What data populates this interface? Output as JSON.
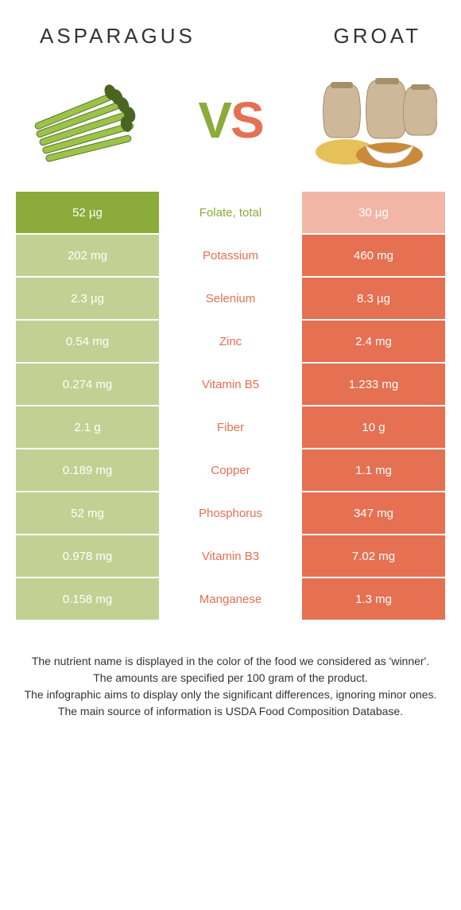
{
  "foods": {
    "left": {
      "name": "Asparagus",
      "color_full": "#8bab3b",
      "color_faded": "#c2d193"
    },
    "right": {
      "name": "Groat",
      "color_full": "#e57052",
      "color_faded": "#f1b6a5"
    }
  },
  "vs": {
    "text_v": "V",
    "text_s": "S"
  },
  "table": {
    "mid_colors": {
      "left_win": "#8bab3b",
      "right_win": "#e57052"
    },
    "rows": [
      {
        "nutrient": "Folate, total",
        "left": "52 µg",
        "right": "30 µg",
        "winner": "left"
      },
      {
        "nutrient": "Potassium",
        "left": "202 mg",
        "right": "460 mg",
        "winner": "right"
      },
      {
        "nutrient": "Selenium",
        "left": "2.3 µg",
        "right": "8.3 µg",
        "winner": "right"
      },
      {
        "nutrient": "Zinc",
        "left": "0.54 mg",
        "right": "2.4 mg",
        "winner": "right"
      },
      {
        "nutrient": "Vitamin B5",
        "left": "0.274 mg",
        "right": "1.233 mg",
        "winner": "right"
      },
      {
        "nutrient": "Fiber",
        "left": "2.1 g",
        "right": "10 g",
        "winner": "right"
      },
      {
        "nutrient": "Copper",
        "left": "0.189 mg",
        "right": "1.1 mg",
        "winner": "right"
      },
      {
        "nutrient": "Phosphorus",
        "left": "52 mg",
        "right": "347 mg",
        "winner": "right"
      },
      {
        "nutrient": "Vitamin B3",
        "left": "0.978 mg",
        "right": "7.02 mg",
        "winner": "right"
      },
      {
        "nutrient": "Manganese",
        "left": "0.158 mg",
        "right": "1.3 mg",
        "winner": "right"
      }
    ]
  },
  "footnotes": [
    "The nutrient name is displayed in the color of the food we considered as 'winner'.",
    "The amounts are specified per 100 gram of the product.",
    "The infographic aims to display only the significant differences, ignoring minor ones.",
    "The main source of information is USDA Food Composition Database."
  ]
}
